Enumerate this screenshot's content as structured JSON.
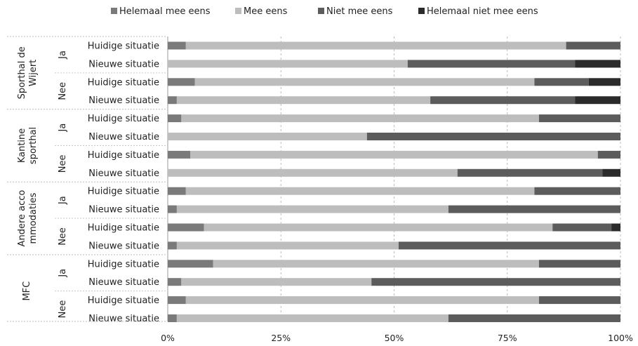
{
  "colors": {
    "helemaal_mee_eens": "#7a7a7a",
    "mee_eens": "#bdbdbd",
    "niet_mee_eens": "#5c5c5c",
    "helemaal_niet_mee_eens": "#2b2b2b",
    "grid": "#bbbbbb",
    "axis": "#999999"
  },
  "chart_data": {
    "type": "bar",
    "orientation": "horizontal",
    "stacked": "percent",
    "title": "",
    "xlabel": "",
    "ylabel": "",
    "xlim": [
      0,
      100
    ],
    "x_ticks": [
      "0%",
      "25%",
      "50%",
      "75%",
      "100%"
    ],
    "x_tick_values": [
      0,
      25,
      50,
      75,
      100
    ],
    "grid": true,
    "legend_position": "top",
    "legend": [
      "Helemaal mee eens",
      "Mee eens",
      "Niet mee eens",
      "Helemaal niet mee eens"
    ],
    "groups": [
      {
        "name": "Sporthal de Wijert",
        "name_lines": [
          "Sporthal de",
          "Wijert"
        ],
        "subgroups": [
          {
            "name": "Ja",
            "rows": [
              {
                "label": "Huidige situatie",
                "values": [
                  4,
                  84,
                  12,
                  0
                ]
              },
              {
                "label": "Nieuwe situatie",
                "values": [
                  0,
                  53,
                  37,
                  10
                ]
              }
            ]
          },
          {
            "name": "Nee",
            "rows": [
              {
                "label": "Huidige situatie",
                "values": [
                  6,
                  75,
                  12,
                  7
                ]
              },
              {
                "label": "Nieuwe situatie",
                "values": [
                  2,
                  56,
                  32,
                  10
                ]
              }
            ]
          }
        ]
      },
      {
        "name": "Kantine sporthal",
        "name_lines": [
          "Kantine",
          "sporthal"
        ],
        "subgroups": [
          {
            "name": "Ja",
            "rows": [
              {
                "label": "Huidige situatie",
                "values": [
                  3,
                  79,
                  18,
                  0
                ]
              },
              {
                "label": "Nieuwe situatie",
                "values": [
                  0,
                  44,
                  56,
                  0
                ]
              }
            ]
          },
          {
            "name": "Nee",
            "rows": [
              {
                "label": "Huidige situatie",
                "values": [
                  5,
                  90,
                  5,
                  0
                ]
              },
              {
                "label": "Nieuwe situatie",
                "values": [
                  0,
                  64,
                  32,
                  4
                ]
              }
            ]
          }
        ]
      },
      {
        "name": "Andere accommodaties",
        "name_lines": [
          "Andere acco",
          "mmodaties"
        ],
        "subgroups": [
          {
            "name": "Ja",
            "rows": [
              {
                "label": "Huidige situatie",
                "values": [
                  4,
                  77,
                  19,
                  0
                ]
              },
              {
                "label": "Nieuwe situatie",
                "values": [
                  2,
                  60,
                  38,
                  0
                ]
              }
            ]
          },
          {
            "name": "Nee",
            "rows": [
              {
                "label": "Huidige situatie",
                "values": [
                  8,
                  77,
                  13,
                  2
                ]
              },
              {
                "label": "Nieuwe situatie",
                "values": [
                  2,
                  49,
                  49,
                  0
                ]
              }
            ]
          }
        ]
      },
      {
        "name": "MFC",
        "name_lines": [
          "MFC"
        ],
        "subgroups": [
          {
            "name": "Ja",
            "rows": [
              {
                "label": "Huidige situatie",
                "values": [
                  10,
                  72,
                  18,
                  0
                ]
              },
              {
                "label": "Nieuwe situatie",
                "values": [
                  3,
                  42,
                  55,
                  0
                ]
              }
            ]
          },
          {
            "name": "Nee",
            "rows": [
              {
                "label": "Huidige situatie",
                "values": [
                  4,
                  78,
                  18,
                  0
                ]
              },
              {
                "label": "Nieuwe situatie",
                "values": [
                  2,
                  60,
                  38,
                  0
                ]
              }
            ]
          }
        ]
      }
    ]
  }
}
